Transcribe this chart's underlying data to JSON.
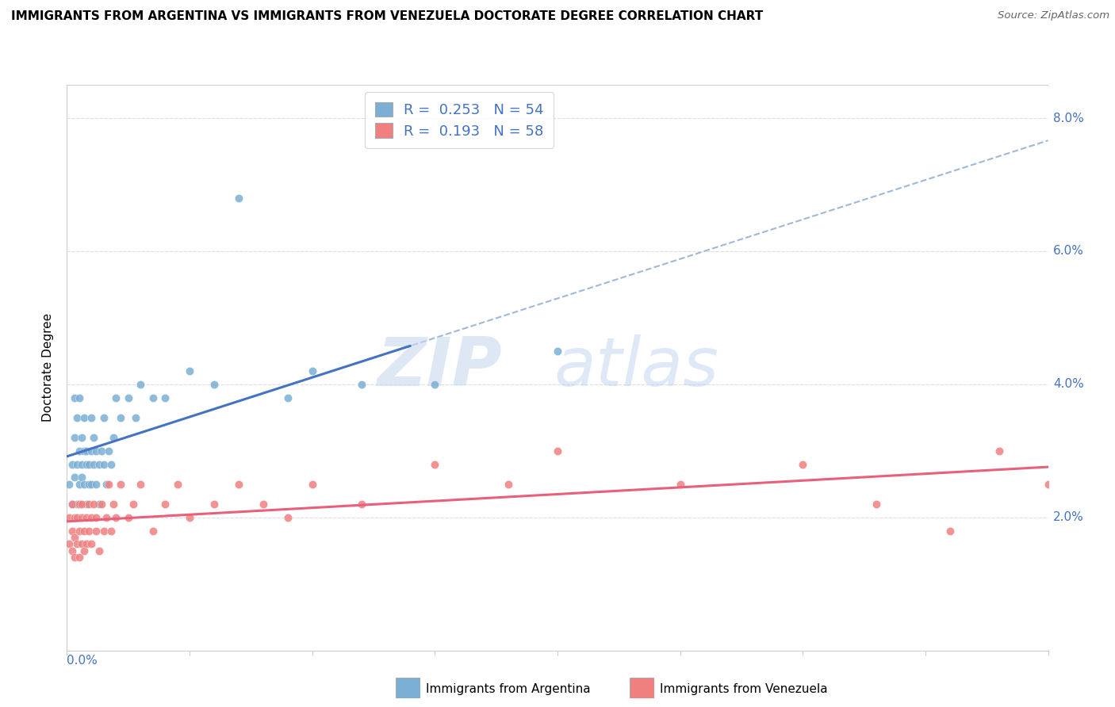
{
  "title": "IMMIGRANTS FROM ARGENTINA VS IMMIGRANTS FROM VENEZUELA DOCTORATE DEGREE CORRELATION CHART",
  "source": "Source: ZipAtlas.com",
  "ylabel": "Doctorate Degree",
  "right_yticks": [
    "2.0%",
    "4.0%",
    "6.0%",
    "8.0%"
  ],
  "right_ytick_vals": [
    0.02,
    0.04,
    0.06,
    0.08
  ],
  "xlim": [
    0.0,
    0.4
  ],
  "ylim": [
    0.0,
    0.085
  ],
  "argentina_color": "#7bafd4",
  "venezuela_color": "#f08080",
  "argentina_line_color": "#4472c4",
  "venezuela_line_color": "#e8607a",
  "dashed_line_color": "#a0b8d8",
  "argentina_R": 0.253,
  "argentina_N": 54,
  "venezuela_R": 0.193,
  "venezuela_N": 58,
  "legend_label_argentina": "Immigrants from Argentina",
  "legend_label_venezuela": "Immigrants from Venezuela",
  "grid_color": "#e0e0e0",
  "grid_linestyle": "--",
  "argentina_scatter_x": [
    0.001,
    0.002,
    0.002,
    0.003,
    0.003,
    0.003,
    0.004,
    0.004,
    0.004,
    0.005,
    0.005,
    0.005,
    0.006,
    0.006,
    0.006,
    0.007,
    0.007,
    0.007,
    0.008,
    0.008,
    0.008,
    0.009,
    0.009,
    0.01,
    0.01,
    0.01,
    0.011,
    0.011,
    0.012,
    0.012,
    0.013,
    0.013,
    0.014,
    0.015,
    0.015,
    0.016,
    0.017,
    0.018,
    0.019,
    0.02,
    0.022,
    0.025,
    0.028,
    0.03,
    0.035,
    0.04,
    0.05,
    0.06,
    0.07,
    0.09,
    0.1,
    0.12,
    0.15,
    0.2
  ],
  "argentina_scatter_y": [
    0.025,
    0.022,
    0.028,
    0.038,
    0.032,
    0.026,
    0.035,
    0.028,
    0.022,
    0.03,
    0.025,
    0.038,
    0.028,
    0.032,
    0.026,
    0.03,
    0.025,
    0.035,
    0.028,
    0.022,
    0.03,
    0.028,
    0.025,
    0.03,
    0.035,
    0.025,
    0.032,
    0.028,
    0.03,
    0.025,
    0.028,
    0.022,
    0.03,
    0.028,
    0.035,
    0.025,
    0.03,
    0.028,
    0.032,
    0.038,
    0.035,
    0.038,
    0.035,
    0.04,
    0.038,
    0.038,
    0.042,
    0.04,
    0.068,
    0.038,
    0.042,
    0.04,
    0.04,
    0.045
  ],
  "venezuela_scatter_x": [
    0.001,
    0.001,
    0.002,
    0.002,
    0.002,
    0.003,
    0.003,
    0.003,
    0.004,
    0.004,
    0.005,
    0.005,
    0.005,
    0.006,
    0.006,
    0.006,
    0.007,
    0.007,
    0.008,
    0.008,
    0.009,
    0.009,
    0.01,
    0.01,
    0.011,
    0.012,
    0.012,
    0.013,
    0.014,
    0.015,
    0.016,
    0.017,
    0.018,
    0.019,
    0.02,
    0.022,
    0.025,
    0.027,
    0.03,
    0.035,
    0.04,
    0.045,
    0.05,
    0.06,
    0.07,
    0.08,
    0.09,
    0.1,
    0.12,
    0.15,
    0.18,
    0.2,
    0.25,
    0.3,
    0.33,
    0.36,
    0.38,
    0.4
  ],
  "venezuela_scatter_y": [
    0.02,
    0.016,
    0.018,
    0.022,
    0.015,
    0.02,
    0.017,
    0.014,
    0.02,
    0.016,
    0.022,
    0.018,
    0.014,
    0.02,
    0.016,
    0.022,
    0.018,
    0.015,
    0.02,
    0.016,
    0.022,
    0.018,
    0.02,
    0.016,
    0.022,
    0.018,
    0.02,
    0.015,
    0.022,
    0.018,
    0.02,
    0.025,
    0.018,
    0.022,
    0.02,
    0.025,
    0.02,
    0.022,
    0.025,
    0.018,
    0.022,
    0.025,
    0.02,
    0.022,
    0.025,
    0.022,
    0.02,
    0.025,
    0.022,
    0.028,
    0.025,
    0.03,
    0.025,
    0.028,
    0.022,
    0.018,
    0.03,
    0.025
  ]
}
